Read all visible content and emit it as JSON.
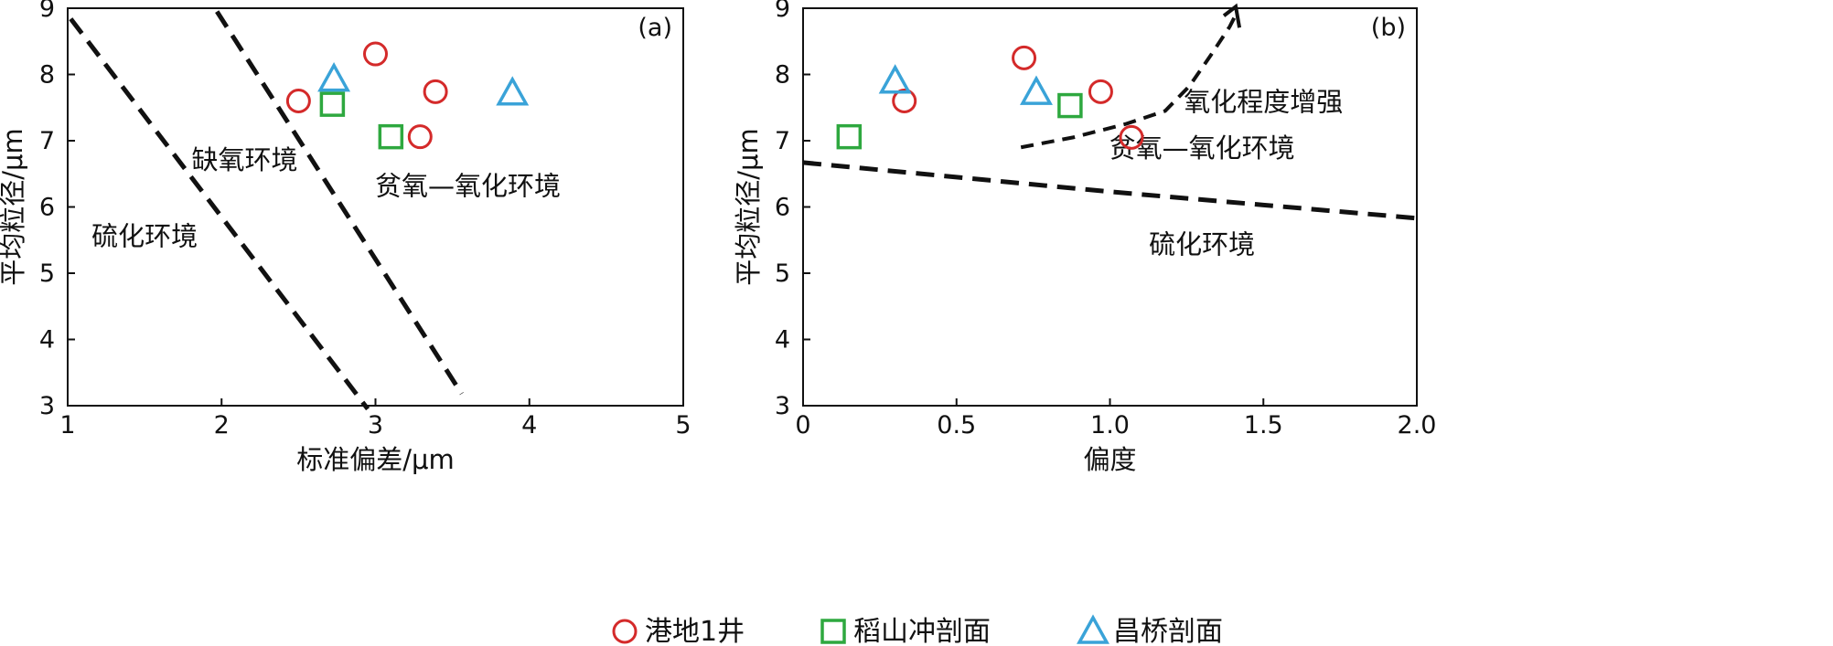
{
  "legend": [
    {
      "name": "港地1井",
      "marker": "circle",
      "color": "#d42a2a"
    },
    {
      "name": "稻山冲剖面",
      "marker": "square",
      "color": "#2ea83f"
    },
    {
      "name": "昌桥剖面",
      "marker": "triangle",
      "color": "#3aa3d8"
    }
  ],
  "chart_data": [
    {
      "type": "scatter",
      "panel_label": "(a)",
      "xlabel": "标准偏差/μm",
      "ylabel": "平均粒径/μm",
      "xlim": [
        1,
        5
      ],
      "ylim": [
        3,
        9
      ],
      "xticks": [
        "1",
        "2",
        "3",
        "4",
        "5"
      ],
      "yticks": [
        "3",
        "4",
        "5",
        "6",
        "7",
        "8",
        "9"
      ],
      "series": [
        {
          "name": "港地1井",
          "marker": "circle",
          "color": "#d42a2a",
          "x": [
            2.5,
            3.0,
            3.39,
            3.29
          ],
          "y": [
            7.6,
            8.31,
            7.74,
            7.06
          ]
        },
        {
          "name": "稻山冲剖面",
          "marker": "square",
          "color": "#2ea83f",
          "x": [
            2.72,
            3.1
          ],
          "y": [
            7.55,
            7.06
          ]
        },
        {
          "name": "昌桥剖面",
          "marker": "triangle",
          "color": "#3aa3d8",
          "x": [
            2.73,
            3.89
          ],
          "y": [
            7.93,
            7.72
          ]
        }
      ],
      "boundaries": [
        {
          "x": [
            1.02,
            2.95
          ],
          "y": [
            8.84,
            2.95
          ]
        },
        {
          "x": [
            1.97,
            3.56
          ],
          "y": [
            8.95,
            3.18
          ]
        }
      ],
      "regions": [
        {
          "text": "硫化环境",
          "x": 1.5,
          "y": 5.42
        },
        {
          "text": "缺氧环境",
          "x": 2.15,
          "y": 6.57
        },
        {
          "text": "贫氧—氧化环境",
          "x": 3.6,
          "y": 6.18
        }
      ]
    },
    {
      "type": "scatter",
      "panel_label": "(b)",
      "xlabel": "偏度",
      "ylabel": "平均粒径/μm",
      "xlim": [
        0,
        2.0
      ],
      "ylim": [
        3,
        9
      ],
      "xticks": [
        "0",
        "0.5",
        "1.0",
        "1.5",
        "2.0"
      ],
      "yticks": [
        "3",
        "4",
        "5",
        "6",
        "7",
        "8",
        "9"
      ],
      "series": [
        {
          "name": "港地1井",
          "marker": "circle",
          "color": "#d42a2a",
          "x": [
            0.33,
            0.72,
            0.97,
            1.07
          ],
          "y": [
            7.6,
            8.25,
            7.74,
            7.05
          ]
        },
        {
          "name": "稻山冲剖面",
          "marker": "square",
          "color": "#2ea83f",
          "x": [
            0.15,
            0.87
          ],
          "y": [
            7.06,
            7.53
          ]
        },
        {
          "name": "昌桥剖面",
          "marker": "triangle",
          "color": "#3aa3d8",
          "x": [
            0.3,
            0.76
          ],
          "y": [
            7.9,
            7.73
          ]
        }
      ],
      "boundaries": [
        {
          "x": [
            0.0,
            0.5,
            1.0,
            1.5,
            2.0
          ],
          "y": [
            6.67,
            6.45,
            6.23,
            6.03,
            5.83
          ]
        }
      ],
      "arrow": {
        "x": [
          0.71,
          0.88,
          1.05,
          1.18,
          1.26,
          1.33,
          1.39,
          1.41
        ],
        "y": [
          6.9,
          7.05,
          7.25,
          7.45,
          7.83,
          8.3,
          8.72,
          8.9
        ]
      },
      "regions": [
        {
          "text": "氧化程度增强",
          "x": 1.5,
          "y": 7.45
        },
        {
          "text": "贫氧—氧化环境",
          "x": 1.3,
          "y": 6.75
        },
        {
          "text": "硫化环境",
          "x": 1.3,
          "y": 5.3
        }
      ]
    }
  ]
}
